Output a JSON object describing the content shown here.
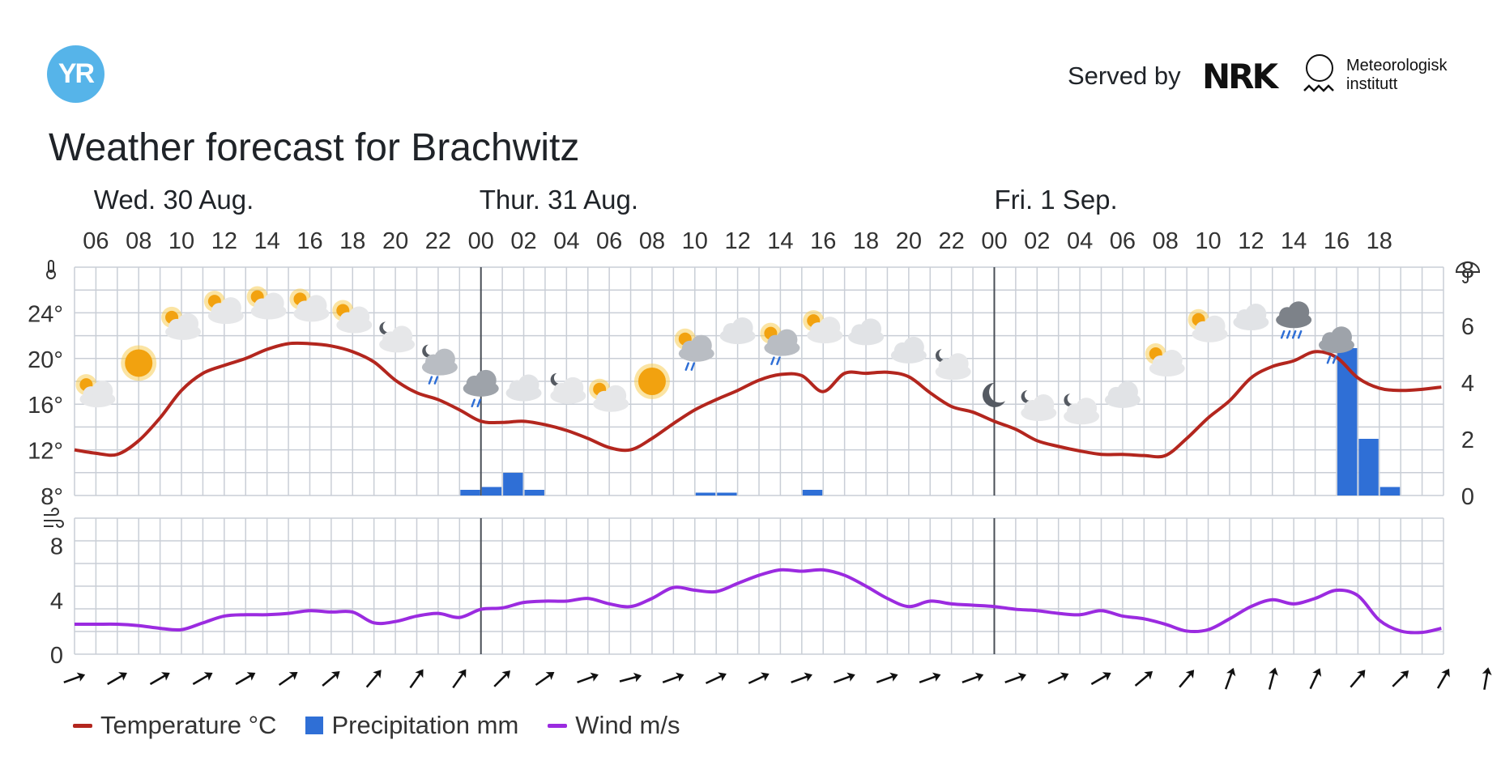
{
  "header": {
    "logo": "YR",
    "served_by": "Served by",
    "nrk": "NRK",
    "met_name": "Meteorologisk\ninstitutt"
  },
  "title": "Weather forecast for Brachwitz",
  "colors": {
    "temperature": "#b3261e",
    "precipitation": "#2f6fd6",
    "wind": "#9b2be0",
    "grid": "#c9ced6"
  },
  "chart_data": {
    "type": "line",
    "x_start": "Wed 30 Aug 05:00",
    "day_labels": [
      {
        "label": "Wed. 30 Aug.",
        "hour": 5.9
      },
      {
        "label": "Thur. 31 Aug.",
        "hour": 24
      },
      {
        "label": "Fri. 1 Sep.",
        "hour": 48
      }
    ],
    "time_ticks": [
      "06",
      "08",
      "10",
      "12",
      "14",
      "16",
      "18",
      "20",
      "22",
      "00",
      "02",
      "04",
      "06",
      "08",
      "10",
      "12",
      "14",
      "16",
      "18",
      "20",
      "22",
      "00",
      "02",
      "04",
      "06",
      "08",
      "10",
      "12",
      "14",
      "16",
      "18"
    ],
    "temperature_axis": {
      "ticks": [
        "8°",
        "12°",
        "16°",
        "20°",
        "24°"
      ],
      "values": [
        8,
        12,
        16,
        20,
        24
      ],
      "range": [
        8,
        28
      ]
    },
    "precipitation_axis": {
      "ticks": [
        "0",
        "2",
        "4",
        "6",
        "8"
      ],
      "range": [
        0,
        8
      ]
    },
    "wind_axis": {
      "ticks": [
        "0",
        "4",
        "8"
      ],
      "range": [
        0,
        10
      ]
    },
    "series": [
      {
        "name": "Temperature °C",
        "unit": "°C",
        "points": [
          [
            5,
            12
          ],
          [
            6,
            11.7
          ],
          [
            7,
            11.6
          ],
          [
            8,
            12.8
          ],
          [
            9,
            14.8
          ],
          [
            10,
            17.2
          ],
          [
            11,
            18.7
          ],
          [
            12,
            19.4
          ],
          [
            13,
            20
          ],
          [
            14,
            20.8
          ],
          [
            15,
            21.3
          ],
          [
            16,
            21.3
          ],
          [
            17,
            21.1
          ],
          [
            18,
            20.6
          ],
          [
            19,
            19.7
          ],
          [
            20,
            18.1
          ],
          [
            21,
            17
          ],
          [
            22,
            16.4
          ],
          [
            23,
            15.5
          ],
          [
            24,
            14.5
          ],
          [
            25,
            14.4
          ],
          [
            26,
            14.5
          ],
          [
            27,
            14.2
          ],
          [
            28,
            13.7
          ],
          [
            29,
            13
          ],
          [
            30,
            12.2
          ],
          [
            31,
            12
          ],
          [
            32,
            13
          ],
          [
            33,
            14.3
          ],
          [
            34,
            15.5
          ],
          [
            35,
            16.4
          ],
          [
            36,
            17.2
          ],
          [
            37,
            18.1
          ],
          [
            38,
            18.6
          ],
          [
            39,
            18.5
          ],
          [
            40,
            17.1
          ],
          [
            41,
            18.7
          ],
          [
            42,
            18.7
          ],
          [
            43,
            18.8
          ],
          [
            44,
            18.4
          ],
          [
            45,
            17
          ],
          [
            46,
            15.8
          ],
          [
            47,
            15.3
          ],
          [
            48,
            14.5
          ],
          [
            49,
            13.8
          ],
          [
            50,
            12.8
          ],
          [
            51,
            12.3
          ],
          [
            52,
            11.9
          ],
          [
            53,
            11.6
          ],
          [
            54,
            11.6
          ],
          [
            55,
            11.5
          ],
          [
            56,
            11.5
          ],
          [
            57,
            13
          ],
          [
            58,
            14.8
          ],
          [
            59,
            16.3
          ],
          [
            60,
            18.3
          ],
          [
            61,
            19.3
          ],
          [
            62,
            19.8
          ],
          [
            63,
            20.6
          ],
          [
            64,
            20.1
          ],
          [
            65,
            18.3
          ],
          [
            66,
            17.4
          ],
          [
            67,
            17.2
          ],
          [
            68,
            17.3
          ],
          [
            68.9,
            17.5
          ]
        ]
      },
      {
        "name": "Precipitation mm",
        "unit": "mm",
        "bars": [
          [
            23,
            0.2
          ],
          [
            24,
            0.3
          ],
          [
            25,
            0.8
          ],
          [
            26,
            0.2
          ],
          [
            34,
            0.1
          ],
          [
            35,
            0.1
          ],
          [
            39,
            0.2
          ],
          [
            64,
            5.2
          ],
          [
            65,
            2
          ],
          [
            66,
            0.3
          ]
        ]
      },
      {
        "name": "Wind m/s",
        "unit": "m/s",
        "points": [
          [
            5,
            2.2
          ],
          [
            6,
            2.2
          ],
          [
            7,
            2.2
          ],
          [
            8,
            2.1
          ],
          [
            9,
            1.9
          ],
          [
            10,
            1.8
          ],
          [
            11,
            2.3
          ],
          [
            12,
            2.8
          ],
          [
            13,
            2.9
          ],
          [
            14,
            2.9
          ],
          [
            15,
            3
          ],
          [
            16,
            3.2
          ],
          [
            17,
            3.1
          ],
          [
            18,
            3.1
          ],
          [
            19,
            2.3
          ],
          [
            20,
            2.4
          ],
          [
            21,
            2.8
          ],
          [
            22,
            3
          ],
          [
            23,
            2.7
          ],
          [
            24,
            3.3
          ],
          [
            25,
            3.4
          ],
          [
            26,
            3.8
          ],
          [
            27,
            3.9
          ],
          [
            28,
            3.9
          ],
          [
            29,
            4.1
          ],
          [
            30,
            3.7
          ],
          [
            31,
            3.5
          ],
          [
            32,
            4.1
          ],
          [
            33,
            4.9
          ],
          [
            34,
            4.7
          ],
          [
            35,
            4.6
          ],
          [
            36,
            5.2
          ],
          [
            37,
            5.8
          ],
          [
            38,
            6.2
          ],
          [
            39,
            6.1
          ],
          [
            40,
            6.2
          ],
          [
            41,
            5.8
          ],
          [
            42,
            5
          ],
          [
            43,
            4.1
          ],
          [
            44,
            3.5
          ],
          [
            45,
            3.9
          ],
          [
            46,
            3.7
          ],
          [
            47,
            3.6
          ],
          [
            48,
            3.5
          ],
          [
            49,
            3.3
          ],
          [
            50,
            3.2
          ],
          [
            51,
            3
          ],
          [
            52,
            2.9
          ],
          [
            53,
            3.2
          ],
          [
            54,
            2.8
          ],
          [
            55,
            2.6
          ],
          [
            56,
            2.2
          ],
          [
            57,
            1.7
          ],
          [
            58,
            1.8
          ],
          [
            59,
            2.6
          ],
          [
            60,
            3.5
          ],
          [
            61,
            4
          ],
          [
            62,
            3.7
          ],
          [
            63,
            4.1
          ],
          [
            64,
            4.7
          ],
          [
            65,
            4.3
          ],
          [
            66,
            2.5
          ],
          [
            67,
            1.7
          ],
          [
            68,
            1.6
          ],
          [
            68.9,
            1.9
          ]
        ]
      }
    ],
    "weather_icons": [
      {
        "hour": 6,
        "icon": "partly-cloudy-day",
        "temp": 17
      },
      {
        "hour": 8,
        "icon": "clear-day",
        "temp": 19.6
      },
      {
        "hour": 10,
        "icon": "partly-cloudy-day",
        "temp": 22.9
      },
      {
        "hour": 12,
        "icon": "partly-cloudy-day",
        "temp": 24.3
      },
      {
        "hour": 14,
        "icon": "partly-cloudy-day",
        "temp": 24.7
      },
      {
        "hour": 16,
        "icon": "partly-cloudy-day",
        "temp": 24.5
      },
      {
        "hour": 18,
        "icon": "partly-cloudy-day",
        "temp": 23.5
      },
      {
        "hour": 20,
        "icon": "partly-cloudy-night",
        "temp": 21.8
      },
      {
        "hour": 22,
        "icon": "rain-showers-night",
        "temp": 19.8
      },
      {
        "hour": 24,
        "icon": "light-rain",
        "temp": 17.8
      },
      {
        "hour": 26,
        "icon": "cloudy",
        "temp": 17.4
      },
      {
        "hour": 28,
        "icon": "partly-cloudy-night",
        "temp": 17.3
      },
      {
        "hour": 30,
        "icon": "partly-cloudy-day",
        "temp": 16.6
      },
      {
        "hour": 32,
        "icon": "clear-day",
        "temp": 18
      },
      {
        "hour": 34,
        "icon": "rain-showers-day",
        "temp": 21
      },
      {
        "hour": 36,
        "icon": "cloudy",
        "temp": 22.4
      },
      {
        "hour": 38,
        "icon": "rain-showers-day",
        "temp": 21.5
      },
      {
        "hour": 40,
        "icon": "partly-cloudy-day",
        "temp": 22.6
      },
      {
        "hour": 42,
        "icon": "cloudy",
        "temp": 22.3
      },
      {
        "hour": 44,
        "icon": "cloudy",
        "temp": 20.7
      },
      {
        "hour": 46,
        "icon": "partly-cloudy-night",
        "temp": 19.4
      },
      {
        "hour": 48,
        "icon": "clear-night",
        "temp": 16.8
      },
      {
        "hour": 50,
        "icon": "partly-cloudy-night",
        "temp": 15.8
      },
      {
        "hour": 52,
        "icon": "partly-cloudy-night",
        "temp": 15.5
      },
      {
        "hour": 54,
        "icon": "cloudy",
        "temp": 16.8
      },
      {
        "hour": 56,
        "icon": "partly-cloudy-day",
        "temp": 19.7
      },
      {
        "hour": 58,
        "icon": "partly-cloudy-day",
        "temp": 22.7
      },
      {
        "hour": 60,
        "icon": "cloudy",
        "temp": 23.6
      },
      {
        "hour": 62,
        "icon": "heavy-rain",
        "temp": 23.8
      },
      {
        "hour": 64,
        "icon": "light-rain",
        "temp": 21.6
      }
    ],
    "wind_directions_deg": [
      70,
      60,
      60,
      60,
      60,
      55,
      50,
      40,
      35,
      35,
      45,
      55,
      70,
      75,
      70,
      65,
      65,
      70,
      70,
      70,
      70,
      70,
      70,
      65,
      60,
      50,
      40,
      20,
      15,
      25,
      40,
      45,
      30,
      10
    ]
  },
  "legend": {
    "temperature": "Temperature °C",
    "precipitation": "Precipitation mm",
    "wind": "Wind m/s"
  }
}
